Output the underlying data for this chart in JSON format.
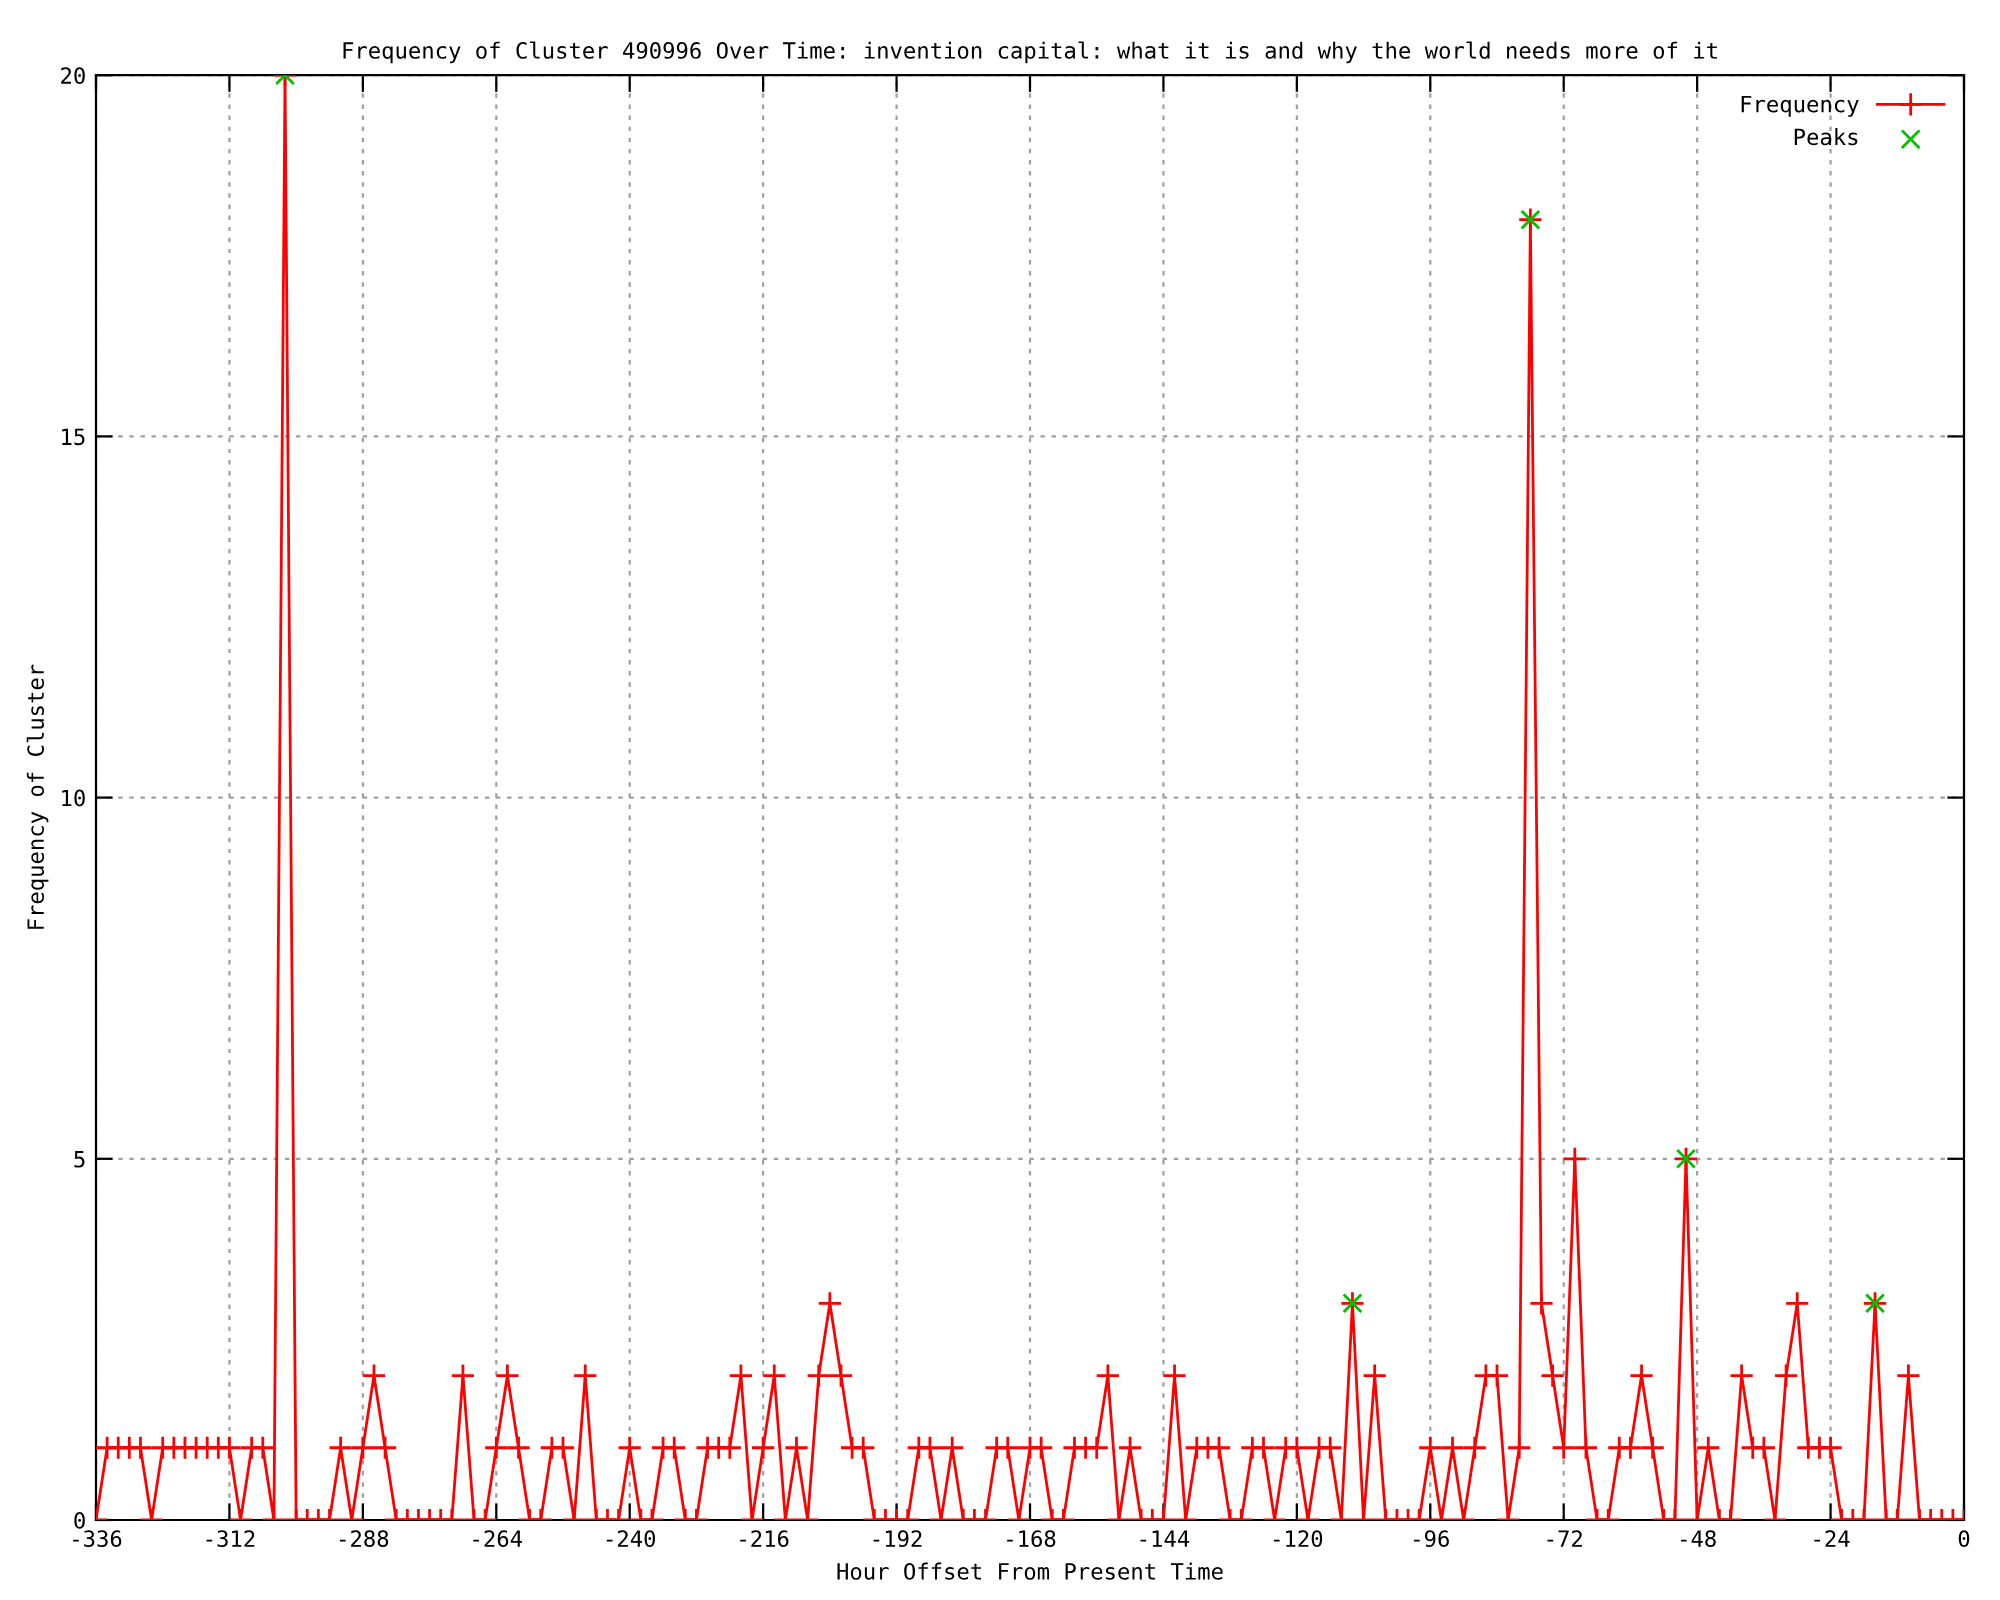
{
  "chart_data": {
    "type": "line",
    "title": "Frequency of Cluster 490996 Over Time: invention capital: what it is and why the world needs more of it",
    "xlabel": "Hour Offset From Present Time",
    "ylabel": "Frequency of Cluster",
    "xlim": [
      -336,
      0
    ],
    "xticks": [
      -336,
      -312,
      -288,
      -264,
      -240,
      -216,
      -192,
      -168,
      -144,
      -120,
      -96,
      -72,
      -48,
      -24,
      0
    ],
    "ylim": [
      0,
      20
    ],
    "yticks": [
      0,
      5,
      10,
      15,
      20
    ],
    "grid": true,
    "legend": "top right",
    "series": [
      {
        "name": "Frequency",
        "color": "#ff0000",
        "marker": "cross",
        "x": [
          -336,
          -334,
          -332,
          -330,
          -328,
          -326,
          -324,
          -322,
          -320,
          -318,
          -316,
          -314,
          -312,
          -310,
          -308,
          -306,
          -304,
          -302,
          -300,
          -298,
          -296,
          -294,
          -292,
          -290,
          -288,
          -286,
          -284,
          -282,
          -280,
          -278,
          -276,
          -274,
          -272,
          -270,
          -268,
          -266,
          -264,
          -262,
          -260,
          -258,
          -256,
          -254,
          -252,
          -250,
          -248,
          -246,
          -244,
          -242,
          -240,
          -238,
          -236,
          -234,
          -232,
          -230,
          -228,
          -226,
          -224,
          -222,
          -220,
          -218,
          -216,
          -214,
          -212,
          -210,
          -208,
          -206,
          -204,
          -202,
          -200,
          -198,
          -196,
          -194,
          -192,
          -190,
          -188,
          -186,
          -184,
          -182,
          -180,
          -178,
          -176,
          -174,
          -172,
          -170,
          -168,
          -166,
          -164,
          -162,
          -160,
          -158,
          -156,
          -154,
          -152,
          -150,
          -148,
          -146,
          -144,
          -142,
          -140,
          -138,
          -136,
          -134,
          -132,
          -130,
          -128,
          -126,
          -124,
          -122,
          -120,
          -118,
          -116,
          -114,
          -112,
          -110,
          -108,
          -106,
          -104,
          -102,
          -100,
          -98,
          -96,
          -94,
          -92,
          -90,
          -88,
          -86,
          -84,
          -82,
          -80,
          -78,
          -76,
          -74,
          -72,
          -70,
          -68,
          -66,
          -64,
          -62,
          -60,
          -58,
          -56,
          -54,
          -52,
          -50,
          -48,
          -46,
          -44,
          -42,
          -40,
          -38,
          -36,
          -34,
          -32,
          -30,
          -28,
          -26,
          -24,
          -22,
          -20,
          -18,
          -16,
          -14,
          -12,
          -10,
          -8,
          -6,
          -4,
          -2,
          0
        ],
        "values": [
          0,
          1,
          1,
          1,
          1,
          0,
          1,
          1,
          1,
          1,
          1,
          1,
          1,
          0,
          1,
          1,
          0,
          20,
          0,
          0,
          0,
          0,
          1,
          0,
          1,
          2,
          1,
          0,
          0,
          0,
          0,
          0,
          0,
          2,
          0,
          0,
          1,
          2,
          1,
          0,
          0,
          1,
          1,
          0,
          2,
          0,
          0,
          0,
          1,
          0,
          0,
          1,
          1,
          0,
          0,
          1,
          1,
          1,
          2,
          0,
          1,
          2,
          0,
          1,
          0,
          2,
          3,
          2,
          1,
          1,
          0,
          0,
          0,
          0,
          1,
          1,
          0,
          1,
          0,
          0,
          0,
          1,
          1,
          0,
          1,
          1,
          0,
          0,
          1,
          1,
          1,
          2,
          0,
          1,
          0,
          0,
          0,
          2,
          0,
          1,
          1,
          1,
          0,
          0,
          1,
          1,
          0,
          1,
          1,
          0,
          1,
          1,
          0,
          3,
          0,
          2,
          0,
          0,
          0,
          0,
          1,
          0,
          1,
          0,
          1,
          2,
          2,
          0,
          1,
          18,
          3,
          2,
          1,
          5,
          1,
          0,
          0,
          1,
          1,
          2,
          1,
          0,
          0,
          5,
          0,
          1,
          0,
          0,
          2,
          1,
          1,
          0,
          2,
          3,
          1,
          1,
          1,
          0,
          0,
          0,
          3,
          0,
          0,
          2,
          0,
          0,
          0,
          0,
          0
        ]
      },
      {
        "name": "Peaks",
        "type": "scatter",
        "color": "#00c000",
        "marker": "cross",
        "x": [
          -302,
          -110,
          -78,
          -50,
          -16
        ],
        "values": [
          20,
          3,
          18,
          5,
          3
        ]
      }
    ]
  }
}
